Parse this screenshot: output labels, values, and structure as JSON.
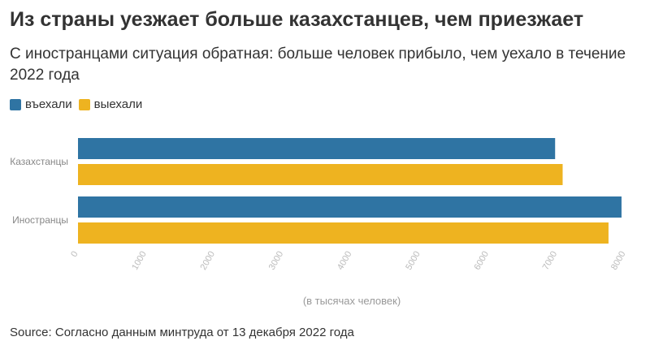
{
  "title": "Из страны уезжает больше казахстанцев, чем приезжает",
  "subtitle": "С иностранцами ситуация обратная: больше человек прибыло, чем уехало в течение 2022 года",
  "source": "Source: Согласно данным минтруда от 13 декабря 2022 года",
  "chart_data": {
    "type": "bar",
    "orientation": "horizontal",
    "categories": [
      "Казахстанцы",
      "Иностранцы"
    ],
    "series": [
      {
        "name": "въехали",
        "color": "#2f74a3",
        "values": [
          6970,
          7940
        ]
      },
      {
        "name": "выехали",
        "color": "#eeb320",
        "values": [
          7080,
          7750
        ]
      }
    ],
    "xlabel": "(в тысячах человек)",
    "ylabel": "",
    "xlim": [
      0,
      8000
    ],
    "xticks": [
      "0",
      "1000",
      "2000",
      "3000",
      "4000",
      "5000",
      "6000",
      "7000",
      "8000"
    ],
    "legend_position": "top-left",
    "grid": false
  }
}
